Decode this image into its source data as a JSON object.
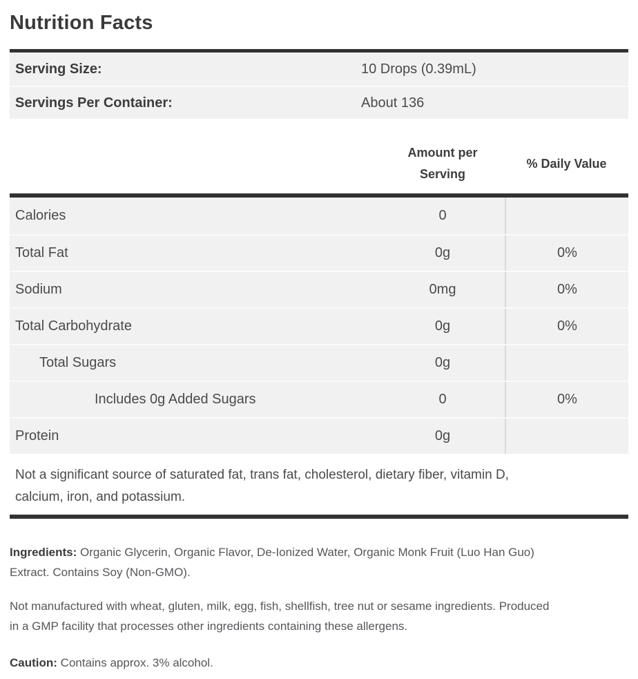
{
  "title": "Nutrition Facts",
  "serving_info": {
    "rows": [
      {
        "label": "Serving Size:",
        "value": "10 Drops (0.39mL)"
      },
      {
        "label": "Servings Per Container:",
        "value": "About 136"
      }
    ]
  },
  "nutrition_table": {
    "headers": {
      "amount": "Amount per\nServing",
      "daily_value": "% Daily Value"
    },
    "rows": [
      {
        "label": "Calories",
        "amount": "0",
        "daily_value": ""
      },
      {
        "label": "Total Fat",
        "amount": "0g",
        "daily_value": "0%"
      },
      {
        "label": "Sodium",
        "amount": "0mg",
        "daily_value": "0%"
      },
      {
        "label": "Total Carbohydrate",
        "amount": "0g",
        "daily_value": "0%"
      },
      {
        "label": "Total Sugars",
        "amount": "0g",
        "daily_value": ""
      },
      {
        "label": "Includes 0g Added Sugars",
        "amount": "0",
        "daily_value": "0%"
      },
      {
        "label": "Protein",
        "amount": "0g",
        "daily_value": ""
      }
    ],
    "footnote": "Not a significant source of saturated fat, trans fat, cholesterol, dietary fiber, vitamin D,\ncalcium, iron, and potassium."
  },
  "paragraphs": {
    "ingredients_label": "Ingredients:",
    "ingredients_text": " Organic Glycerin, Organic Flavor, De-Ionized Water, Organic Monk Fruit (Luo Han Guo)\nExtract. Contains Soy (Non-GMO).",
    "allergen_text": "Not manufactured with wheat, gluten, milk, egg, fish, shellfish, tree nut or sesame ingredients. Produced\nin a GMP facility that processes other ingredients containing these allergens.",
    "caution_label": "Caution:",
    "caution_text": " Contains approx. 3% alcohol."
  },
  "colors": {
    "bar": "#323232",
    "row_background": "#f1f1f2",
    "column_divider": "#d8d8d8",
    "row_separator": "#fafafa",
    "heading_text": "#3a3a3c",
    "body_text": "#4a4a4c"
  }
}
